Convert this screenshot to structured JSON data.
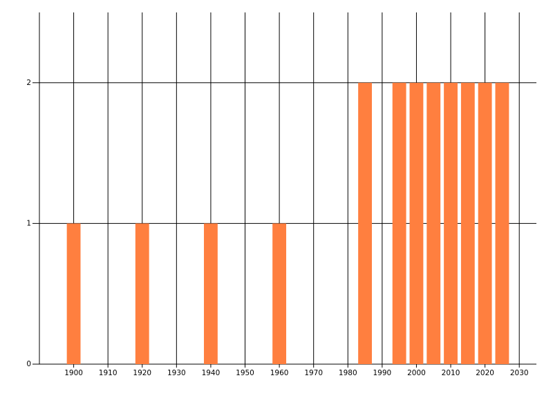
{
  "chart_data": {
    "type": "bar",
    "x": [
      1900,
      1920,
      1940,
      1960,
      1985,
      1995,
      2000,
      2005,
      2010,
      2015,
      2020,
      2025
    ],
    "values": [
      1,
      1,
      1,
      1,
      2,
      2,
      2,
      2,
      2,
      2,
      2,
      2
    ],
    "color": "#ff7f3f",
    "xlim": [
      1890,
      2035
    ],
    "xticks": [
      1900,
      1910,
      1920,
      1930,
      1940,
      1950,
      1960,
      1970,
      1980,
      1990,
      2000,
      2010,
      2020,
      2030
    ],
    "ylim": [
      0,
      2.5
    ],
    "yticks": [
      0,
      1,
      2
    ],
    "grid": true
  }
}
